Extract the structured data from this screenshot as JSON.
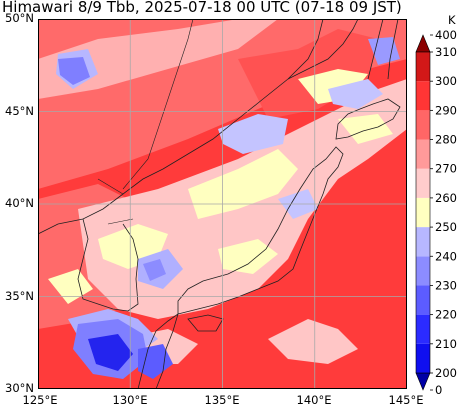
{
  "title": "Himawari 8/9 Tbb, 2025-07-18 00 UTC (07-18 09 JST)",
  "map": {
    "lon_range": [
      125,
      145
    ],
    "lat_range": [
      30,
      50
    ],
    "x_ticks": [
      "125°E",
      "130°E",
      "135°E",
      "140°E",
      "145°E"
    ],
    "y_ticks": [
      "30°N",
      "35°N",
      "40°N",
      "45°N",
      "50°N"
    ],
    "grid": true
  },
  "colorbar": {
    "unit": "K",
    "levels": [
      0,
      200,
      210,
      220,
      230,
      240,
      250,
      260,
      270,
      280,
      290,
      300,
      310,
      400
    ],
    "labels": [
      "0",
      "200",
      "210",
      "220",
      "230",
      "240",
      "250",
      "260",
      "270",
      "280",
      "290",
      "300",
      "310",
      "400"
    ],
    "colors": [
      "#0000a6",
      "#0f0ff0",
      "#2b2bff",
      "#5c5cff",
      "#8c8cff",
      "#b7b7ff",
      "#ffffc0",
      "#ffcccc",
      "#ff9a9a",
      "#ff6666",
      "#ff3535",
      "#d21818",
      "#8b0000"
    ]
  },
  "palette": {
    "sea_warm": "#ff3b3b",
    "land_warm": "#ff6a6a",
    "cloud_pink": "#ffc6c6",
    "cloud_yellow": "#ffffc0",
    "cloud_light_blue": "#c4c4ff",
    "cloud_blue": "#7f7fff",
    "cloud_deep_blue": "#2424ee",
    "coast": "#222222",
    "grid": "#a9a9a9"
  }
}
